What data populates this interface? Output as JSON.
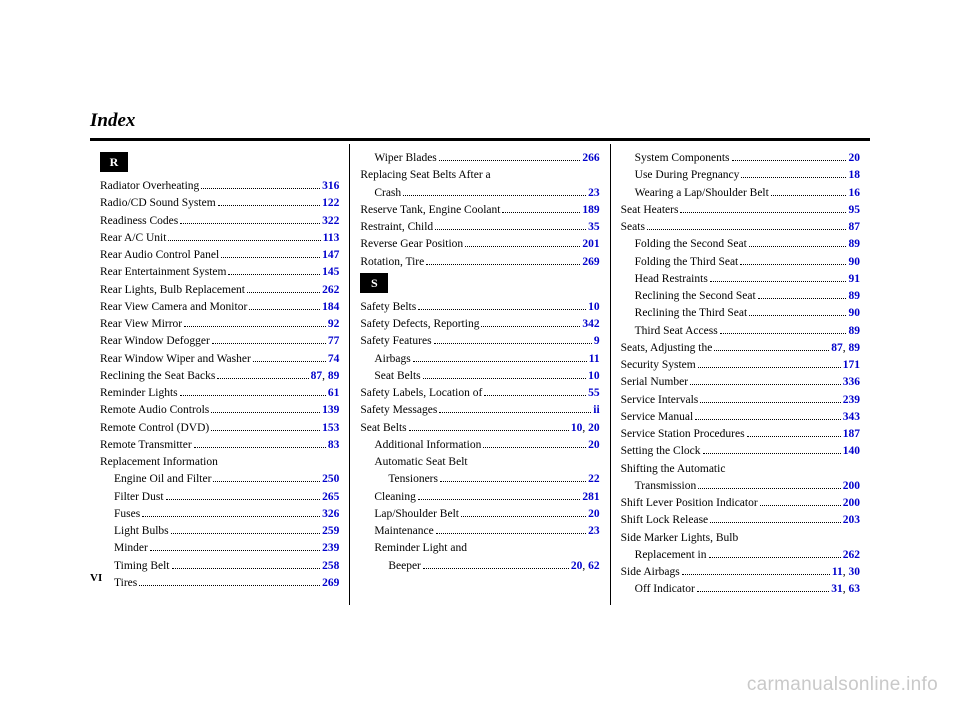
{
  "title": "Index",
  "page_number": "VI",
  "watermark": "carmanualsonline.info",
  "letters": {
    "R": "R",
    "S": "S"
  },
  "columns": [
    {
      "letter": "R",
      "entries": [
        {
          "label": "Radiator Overheating",
          "pages": [
            "316"
          ]
        },
        {
          "label": "Radio/CD Sound System",
          "pages": [
            "122"
          ]
        },
        {
          "label": "Readiness Codes",
          "pages": [
            "322"
          ]
        },
        {
          "label": "Rear A/C Unit",
          "pages": [
            "113"
          ]
        },
        {
          "label": "Rear Audio Control Panel",
          "pages": [
            "147"
          ]
        },
        {
          "label": "Rear Entertainment System",
          "pages": [
            "145"
          ]
        },
        {
          "label": "Rear Lights, Bulb Replacement",
          "pages": [
            "262"
          ]
        },
        {
          "label": "Rear View Camera and Monitor",
          "pages": [
            "184"
          ]
        },
        {
          "label": "Rear View Mirror",
          "pages": [
            "92"
          ]
        },
        {
          "label": "Rear Window Defogger",
          "pages": [
            "77"
          ]
        },
        {
          "label": "Rear Window Wiper and Washer",
          "pages": [
            "74"
          ]
        },
        {
          "label": "Reclining the Seat Backs",
          "pages": [
            "87",
            "89"
          ]
        },
        {
          "label": "Reminder Lights",
          "pages": [
            "61"
          ]
        },
        {
          "label": "Remote Audio Controls",
          "pages": [
            "139"
          ]
        },
        {
          "label": "Remote Control (DVD)",
          "pages": [
            "153"
          ]
        },
        {
          "label": "Remote Transmitter",
          "pages": [
            "83"
          ]
        },
        {
          "label": "Replacement Information",
          "nopage": true
        },
        {
          "label": "Engine Oil and Filter",
          "pages": [
            "250"
          ],
          "indent": 1
        },
        {
          "label": "Filter Dust",
          "pages": [
            "265"
          ],
          "indent": 1
        },
        {
          "label": "Fuses",
          "pages": [
            "326"
          ],
          "indent": 1
        },
        {
          "label": "Light Bulbs",
          "pages": [
            "259"
          ],
          "indent": 1
        },
        {
          "label": "Minder",
          "pages": [
            "239"
          ],
          "indent": 1
        },
        {
          "label": "Timing Belt",
          "pages": [
            "258"
          ],
          "indent": 1
        },
        {
          "label": "Tires",
          "pages": [
            "269"
          ],
          "indent": 1
        }
      ]
    },
    {
      "letter": "S",
      "pre_entries": [
        {
          "label": "Wiper Blades",
          "pages": [
            "266"
          ],
          "indent": 1
        },
        {
          "label": "Replacing Seat Belts After a",
          "nopage": true
        },
        {
          "label": "Crash",
          "pages": [
            "23"
          ],
          "indent": 1
        },
        {
          "label": "Reserve Tank, Engine Coolant",
          "pages": [
            "189"
          ]
        },
        {
          "label": "Restraint, Child",
          "pages": [
            "35"
          ]
        },
        {
          "label": "Reverse Gear Position",
          "pages": [
            "201"
          ]
        },
        {
          "label": "Rotation, Tire",
          "pages": [
            "269"
          ]
        }
      ],
      "entries": [
        {
          "label": "Safety Belts",
          "pages": [
            "10"
          ]
        },
        {
          "label": "Safety Defects, Reporting",
          "pages": [
            "342"
          ]
        },
        {
          "label": "Safety Features",
          "pages": [
            "9"
          ]
        },
        {
          "label": "Airbags",
          "pages": [
            "11"
          ],
          "indent": 1
        },
        {
          "label": "Seat Belts",
          "pages": [
            "10"
          ],
          "indent": 1
        },
        {
          "label": "Safety Labels, Location of",
          "pages": [
            "55"
          ]
        },
        {
          "label": "Safety Messages",
          "pages": [
            "ii"
          ]
        },
        {
          "label": "Seat Belts",
          "pages": [
            "10",
            "20"
          ]
        },
        {
          "label": "Additional Information",
          "pages": [
            "20"
          ],
          "indent": 1
        },
        {
          "label": "Automatic Seat Belt",
          "nopage": true,
          "indent": 1
        },
        {
          "label": "Tensioners",
          "pages": [
            "22"
          ],
          "indent": 2
        },
        {
          "label": "Cleaning",
          "pages": [
            "281"
          ],
          "indent": 1
        },
        {
          "label": "Lap/Shoulder Belt",
          "pages": [
            "20"
          ],
          "indent": 1
        },
        {
          "label": "Maintenance",
          "pages": [
            "23"
          ],
          "indent": 1
        },
        {
          "label": "Reminder Light and",
          "nopage": true,
          "indent": 1
        },
        {
          "label": "Beeper",
          "pages": [
            "20",
            "62"
          ],
          "indent": 2
        }
      ]
    },
    {
      "entries": [
        {
          "label": "System Components",
          "pages": [
            "20"
          ],
          "indent": 1
        },
        {
          "label": "Use During Pregnancy",
          "pages": [
            "18"
          ],
          "indent": 1
        },
        {
          "label": "Wearing a Lap/Shoulder Belt",
          "pages": [
            "16"
          ],
          "indent": 1
        },
        {
          "label": "Seat Heaters",
          "pages": [
            "95"
          ]
        },
        {
          "label": "Seats",
          "pages": [
            "87"
          ]
        },
        {
          "label": "Folding the Second Seat",
          "pages": [
            "89"
          ],
          "indent": 1
        },
        {
          "label": "Folding the Third Seat",
          "pages": [
            "90"
          ],
          "indent": 1
        },
        {
          "label": "Head Restraints",
          "pages": [
            "91"
          ],
          "indent": 1
        },
        {
          "label": "Reclining the Second Seat",
          "pages": [
            "89"
          ],
          "indent": 1
        },
        {
          "label": "Reclining the Third Seat",
          "pages": [
            "90"
          ],
          "indent": 1
        },
        {
          "label": "Third Seat Access",
          "pages": [
            "89"
          ],
          "indent": 1
        },
        {
          "label": "Seats, Adjusting the",
          "pages": [
            "87",
            "89"
          ]
        },
        {
          "label": "Security System",
          "pages": [
            "171"
          ]
        },
        {
          "label": "Serial Number",
          "pages": [
            "336"
          ]
        },
        {
          "label": "Service Intervals",
          "pages": [
            "239"
          ]
        },
        {
          "label": "Service Manual",
          "pages": [
            "343"
          ]
        },
        {
          "label": "Service Station Procedures",
          "pages": [
            "187"
          ]
        },
        {
          "label": "Setting the Clock",
          "pages": [
            "140"
          ]
        },
        {
          "label": "Shifting the Automatic",
          "nopage": true
        },
        {
          "label": "Transmission",
          "pages": [
            "200"
          ],
          "indent": 1
        },
        {
          "label": "Shift Lever Position Indicator",
          "pages": [
            "200"
          ]
        },
        {
          "label": "Shift Lock Release",
          "pages": [
            "203"
          ]
        },
        {
          "label": "Side Marker Lights, Bulb",
          "nopage": true
        },
        {
          "label": "Replacement in",
          "pages": [
            "262"
          ],
          "indent": 1
        },
        {
          "label": "Side Airbags",
          "pages": [
            "11",
            "30"
          ]
        },
        {
          "label": "Off Indicator",
          "pages": [
            "31",
            "63"
          ],
          "indent": 1
        }
      ]
    }
  ]
}
